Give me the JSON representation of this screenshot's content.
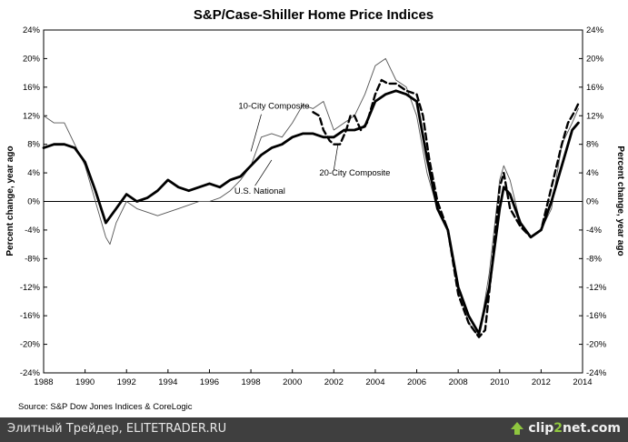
{
  "chart_data": {
    "type": "line",
    "title": "S&P/Case-Shiller Home Price Indices",
    "ylabel_left": "Percent change, year ago",
    "ylabel_right": "Percent change, year ago",
    "xlim": [
      1988,
      2014
    ],
    "ylim": [
      -24,
      24
    ],
    "x_ticks": [
      1988,
      1990,
      1992,
      1994,
      1996,
      1998,
      2000,
      2002,
      2004,
      2006,
      2008,
      2010,
      2012,
      2014
    ],
    "x_tick_labels": [
      "1988",
      "1990",
      "1992",
      "1994",
      "1996",
      "1998",
      "2000",
      "2002",
      "2004",
      "2006",
      "2008",
      "2010",
      "2012",
      "2014"
    ],
    "y_ticks": [
      -24,
      -20,
      -16,
      -12,
      -8,
      -4,
      0,
      4,
      8,
      12,
      16,
      20,
      24
    ],
    "y_tick_labels": [
      "-24%",
      "-20%",
      "-16%",
      "-12%",
      "-8%",
      "-4%",
      "0%",
      "4%",
      "8%",
      "12%",
      "16%",
      "20%",
      "24%"
    ],
    "annotations": [
      {
        "text": "10-City Composite",
        "x": 1997.4,
        "y": 13
      },
      {
        "text": "20-City Composite",
        "x": 2001.3,
        "y": 3.6
      },
      {
        "text": "U.S. National",
        "x": 1997.2,
        "y": 1.1
      }
    ],
    "source": "Source: S&P Dow Jones Indices & CoreLogic",
    "series": [
      {
        "name": "10-City Composite",
        "style": "thin",
        "color": "#555555",
        "x": [
          1988,
          1988.5,
          1989,
          1989.5,
          1990,
          1990.5,
          1991,
          1991.2,
          1991.5,
          1992,
          1992.5,
          1993,
          1993.5,
          1994,
          1994.5,
          1995,
          1995.5,
          1996,
          1996.5,
          1997,
          1997.5,
          1998,
          1998.5,
          1999,
          1999.5,
          2000,
          2000.5,
          2001,
          2001.5,
          2002,
          2002.5,
          2003,
          2003.5,
          2004,
          2004.5,
          2005,
          2005.5,
          2006,
          2006.5,
          2007,
          2007.5,
          2008,
          2008.5,
          2009,
          2009.5,
          2010,
          2010.2,
          2010.5,
          2011,
          2011.5,
          2012,
          2012.5,
          2013,
          2013.5,
          2013.8
        ],
        "y": [
          12,
          11,
          11,
          8,
          5,
          0,
          -5,
          -6,
          -3,
          0,
          -1,
          -1.5,
          -2,
          -1.5,
          -1,
          -0.5,
          0,
          0,
          0.5,
          1.5,
          3,
          5,
          9,
          9.5,
          9,
          11,
          13.5,
          13,
          14,
          10,
          11,
          12,
          15,
          19,
          20,
          17,
          16,
          12,
          4,
          -1,
          -4,
          -12,
          -17,
          -19,
          -10,
          3,
          5,
          3,
          -3,
          -5,
          -4,
          -1,
          8,
          11,
          13
        ]
      },
      {
        "name": "20-City Composite",
        "style": "dashed",
        "color": "#000000",
        "x": [
          2001,
          2001.3,
          2001.5,
          2001.8,
          2002,
          2002.3,
          2002.6,
          2002.8,
          2003,
          2003.3,
          2003.6,
          2004,
          2004.3,
          2004.6,
          2005,
          2005.5,
          2006,
          2006.3,
          2006.6,
          2007,
          2007.5,
          2008,
          2008.5,
          2009,
          2009.3,
          2009.6,
          2010,
          2010.2,
          2010.5,
          2011,
          2011.5,
          2012,
          2012.5,
          2013,
          2013.3,
          2013.6,
          2013.8
        ],
        "y": [
          12.5,
          12,
          10,
          8.5,
          8,
          8,
          10,
          12,
          12,
          10,
          11,
          15,
          17,
          16.5,
          16.5,
          15.5,
          15,
          12,
          6,
          0,
          -4,
          -13,
          -17,
          -19,
          -18,
          -10,
          2,
          4,
          -1,
          -3.5,
          -5,
          -4,
          2,
          8,
          11,
          12.5,
          13.7
        ]
      },
      {
        "name": "U.S. National",
        "style": "thick",
        "color": "#000000",
        "x": [
          1988,
          1988.5,
          1989,
          1989.5,
          1990,
          1990.5,
          1991,
          1991.5,
          1992,
          1992.5,
          1993,
          1993.5,
          1994,
          1994.5,
          1995,
          1995.5,
          1996,
          1996.5,
          1997,
          1997.5,
          1998,
          1998.5,
          1999,
          1999.5,
          2000,
          2000.5,
          2001,
          2001.5,
          2002,
          2002.5,
          2003,
          2003.5,
          2004,
          2004.5,
          2005,
          2005.5,
          2006,
          2006.5,
          2007,
          2007.5,
          2008,
          2008.5,
          2009,
          2009.5,
          2010,
          2010.2,
          2010.5,
          2011,
          2011.5,
          2012,
          2012.5,
          2013,
          2013.5,
          2013.8
        ],
        "y": [
          7.5,
          8,
          8,
          7.5,
          5.5,
          1.5,
          -3,
          -1,
          1,
          0,
          0.5,
          1.5,
          3,
          2,
          1.5,
          2,
          2.5,
          2,
          3,
          3.5,
          5,
          6.5,
          7.5,
          8,
          9,
          9.5,
          9.5,
          9,
          9,
          10,
          10,
          10.5,
          14,
          15,
          15.5,
          15,
          14,
          6,
          -1,
          -4,
          -12,
          -16,
          -18.5,
          -12,
          -1,
          2,
          1,
          -3,
          -5,
          -4,
          0,
          5,
          10,
          11
        ]
      }
    ]
  },
  "footer": {
    "caption": "Элитный Трейдер, ELITETRADER.RU",
    "logo_part1": "clip",
    "logo_part2": "2",
    "logo_part3": "net.com"
  }
}
